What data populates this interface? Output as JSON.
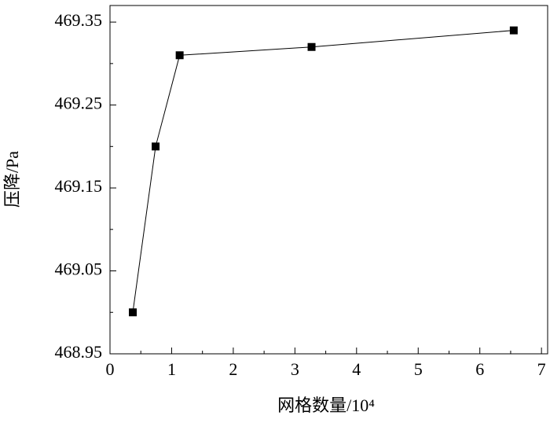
{
  "chart_data": {
    "type": "line",
    "x_label": "网格数量/10⁴",
    "y_label": "压降/Pa",
    "x": [
      0.37,
      0.74,
      1.13,
      3.27,
      6.55
    ],
    "series": [
      {
        "color": "#000000",
        "values": [
          469.0,
          469.2,
          469.31,
          469.32,
          469.34
        ]
      }
    ],
    "xlim": [
      0,
      7.1
    ],
    "xticks": [
      0,
      1,
      2,
      3,
      4,
      5,
      6,
      7
    ],
    "ylim": [
      468.95,
      469.37
    ],
    "yticks": [
      468.95,
      469.05,
      469.15,
      469.25,
      469.35
    ],
    "grid": false
  }
}
